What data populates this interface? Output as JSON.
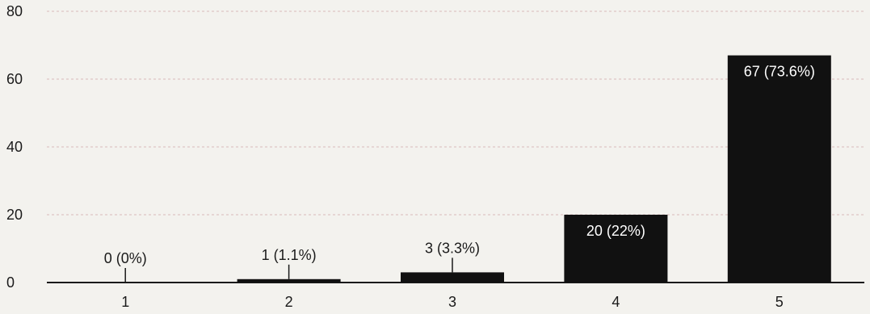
{
  "chart_data": {
    "type": "bar",
    "categories": [
      "1",
      "2",
      "3",
      "4",
      "5"
    ],
    "values": [
      0,
      1,
      3,
      20,
      67
    ],
    "data_labels": [
      "0 (0%)",
      "1 (1.1%)",
      "3 (3.3%)",
      "20 (22%)",
      "67 (73.6%)"
    ],
    "y_ticks": [
      "0",
      "20",
      "40",
      "60",
      "80"
    ],
    "ylim": [
      0,
      80
    ],
    "grid": true,
    "colors": {
      "bar": "#111111",
      "background": "#f3f2ee",
      "grid": "#d8b9b9"
    }
  }
}
